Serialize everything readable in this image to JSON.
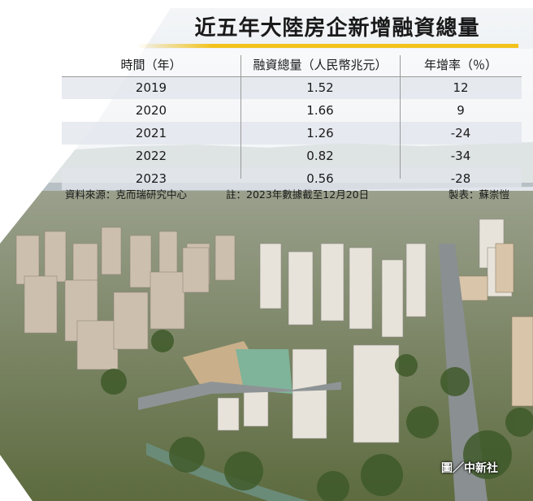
{
  "title": "近五年大陸房企新增融資總量",
  "chart_data": {
    "type": "table",
    "columns": [
      "時間（年）",
      "融資總量（人民幣兆元）",
      "年增率（％）"
    ],
    "rows": [
      {
        "year": "2019",
        "amount": "1.52",
        "growth": "12"
      },
      {
        "year": "2020",
        "amount": "1.66",
        "growth": "9"
      },
      {
        "year": "2021",
        "amount": "1.26",
        "growth": "-24"
      },
      {
        "year": "2022",
        "amount": "0.82",
        "growth": "-34"
      },
      {
        "year": "2023",
        "amount": "0.56",
        "growth": "-28"
      }
    ]
  },
  "footer": {
    "source": "資料來源：克而瑞研究中心",
    "note": "註：2023年數據截至12月20日",
    "maker": "製表：蘇崇愷"
  },
  "photo_credit": "圖／中新社",
  "colors": {
    "accent": "#f2c21d",
    "row_shade": "#e2e5ec"
  }
}
